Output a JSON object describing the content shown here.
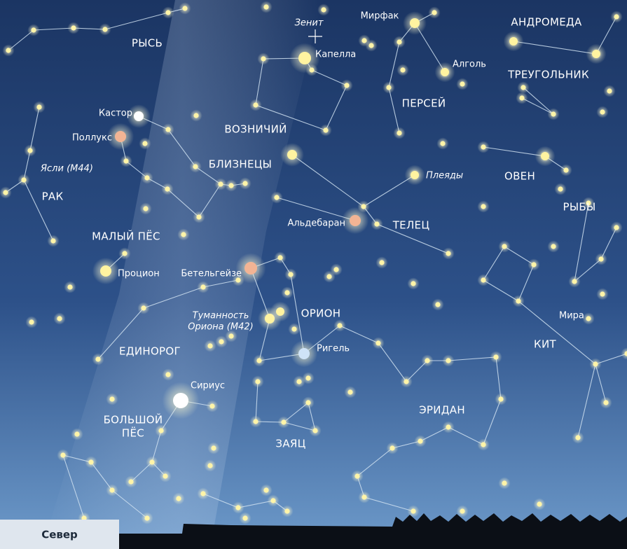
{
  "constellations": [
    "РЫСЬ",
    "АНДРОМЕДА",
    "ТРЕУГОЛЬНИК",
    "ПЕРСЕЙ",
    "ВОЗНИЧИЙ",
    "БЛИЗНЕЦЫ",
    "ОВЕН",
    "РАК",
    "МАЛЫЙ ПЁС",
    "ТЕЛЕЦ",
    "РЫБЫ",
    "ОРИОН",
    "ЕДИНОРОГ",
    "КИТ",
    "ЭРИДАН",
    [
      "БОЛЬШОЙ",
      "ПЁС"
    ],
    "ЗАЯЦ"
  ],
  "stars": [
    "Мирфак",
    "Капелла",
    "Алголь",
    "Кастор",
    "Поллукс",
    "Альдебаран",
    "Процион",
    "Бетельгейзе",
    "Ригель",
    "Сириус",
    "Мира"
  ],
  "objects": {
    "zenith": "Зенит",
    "praesepe": "Ясли (M44)",
    "pleiades": "Плеяды",
    "orion_nebula": [
      "Туманность",
      "Ориона (M42)"
    ]
  },
  "footer": {
    "direction": "Север"
  }
}
